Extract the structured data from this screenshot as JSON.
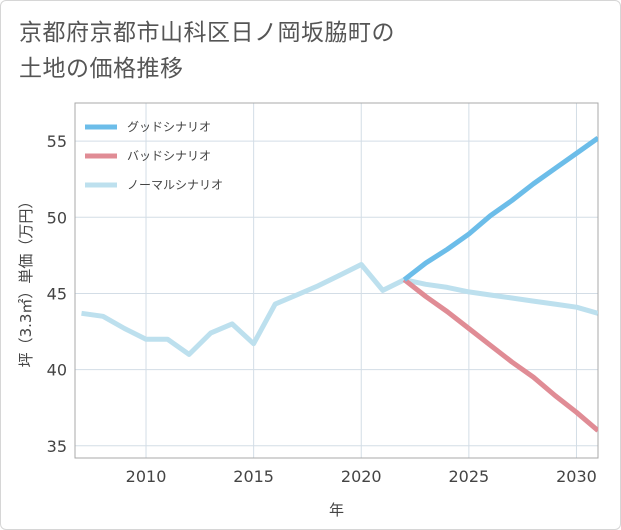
{
  "chart_data": {
    "type": "line",
    "title": "京都府京都市山科区日ノ岡坂脇町の\n土地の価格推移",
    "xlabel": "年",
    "ylabel": "坪（3.3㎡）単価（万円）",
    "xlim": [
      2006.7,
      2031
    ],
    "ylim": [
      34.2,
      57.5
    ],
    "xticks": [
      2010,
      2015,
      2020,
      2025,
      2030
    ],
    "yticks": [
      35,
      40,
      45,
      50,
      55
    ],
    "grid": true,
    "legend_position": "top-left",
    "series": [
      {
        "name": "グッドシナリオ",
        "color": "#6cbde9",
        "x": [
          2022,
          2023,
          2024,
          2025,
          2026,
          2027,
          2028,
          2029,
          2030,
          2031
        ],
        "y": [
          45.9,
          47.0,
          47.9,
          48.9,
          50.1,
          51.1,
          52.2,
          53.2,
          54.2,
          55.2
        ]
      },
      {
        "name": "バッドシナリオ",
        "color": "#e08c95",
        "x": [
          2022,
          2023,
          2024,
          2025,
          2026,
          2027,
          2028,
          2029,
          2030,
          2031
        ],
        "y": [
          45.9,
          44.8,
          43.8,
          42.7,
          41.6,
          40.5,
          39.5,
          38.3,
          37.2,
          36.0
        ]
      },
      {
        "name": "ノーマルシナリオ",
        "color": "#bde0ee",
        "x": [
          2007,
          2008,
          2009,
          2010,
          2011,
          2012,
          2013,
          2014,
          2015,
          2016,
          2017,
          2018,
          2019,
          2020,
          2021,
          2022,
          2023,
          2024,
          2025,
          2026,
          2027,
          2028,
          2029,
          2030,
          2031
        ],
        "y": [
          43.7,
          43.5,
          42.7,
          42.0,
          42.0,
          41.0,
          42.4,
          43.0,
          41.7,
          44.3,
          44.9,
          45.5,
          46.2,
          46.9,
          45.2,
          45.9,
          45.6,
          45.4,
          45.1,
          44.9,
          44.7,
          44.5,
          44.3,
          44.1,
          43.7
        ]
      }
    ]
  }
}
